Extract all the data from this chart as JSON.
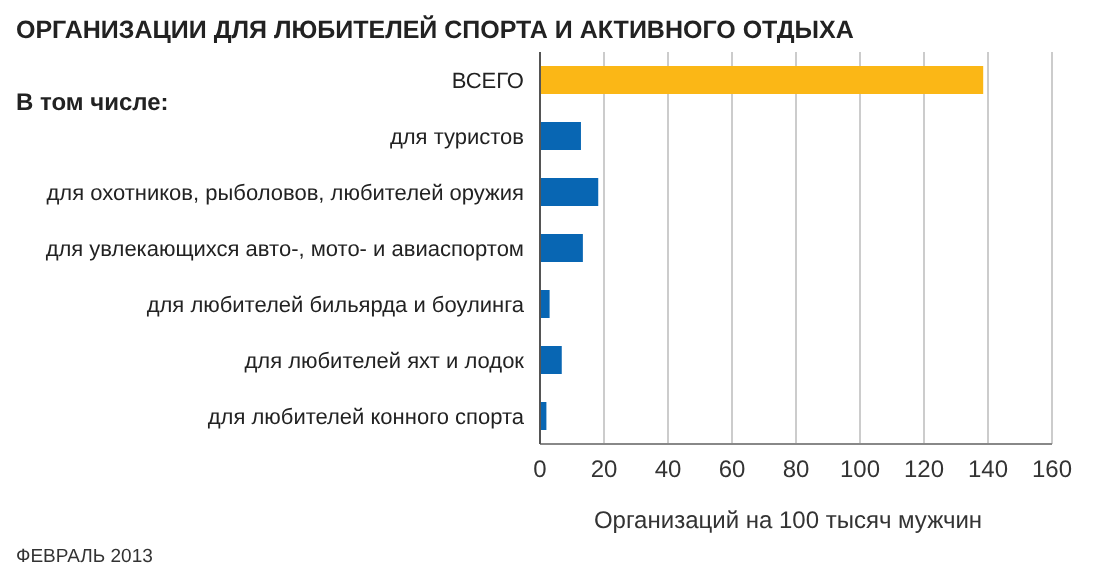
{
  "chart_data": {
    "type": "bar",
    "orientation": "horizontal",
    "title": "ОРГАНИЗАЦИИ ДЛЯ ЛЮБИТЕЛЕЙ СПОРТА И АКТИВНОГО ОТДЫХА",
    "xlabel": "Организаций на 100 тысяч мужчин",
    "categories": [
      "ВСЕГО",
      "для туристов",
      "для охотников, рыболовов, любителей оружия",
      "для увлекающихся авто-, мото- и авиаспортом",
      "для любителей бильярда и боулинга",
      "для любителей яхт и лодок",
      "для любителей конного спорта"
    ],
    "values": [
      138.5,
      12.8,
      18.2,
      13.4,
      3,
      6.8,
      2
    ],
    "colors": [
      "#fbb716",
      "#0866b3",
      "#0866b3",
      "#0866b3",
      "#0866b3",
      "#0866b3",
      "#0866b3"
    ],
    "xlim": [
      0,
      160
    ],
    "xticks": [
      0,
      20,
      40,
      60,
      80,
      100,
      120,
      140,
      160
    ],
    "grid": "x",
    "annotations": [
      "В том числе:",
      "ФЕВРАЛЬ 2013"
    ]
  }
}
